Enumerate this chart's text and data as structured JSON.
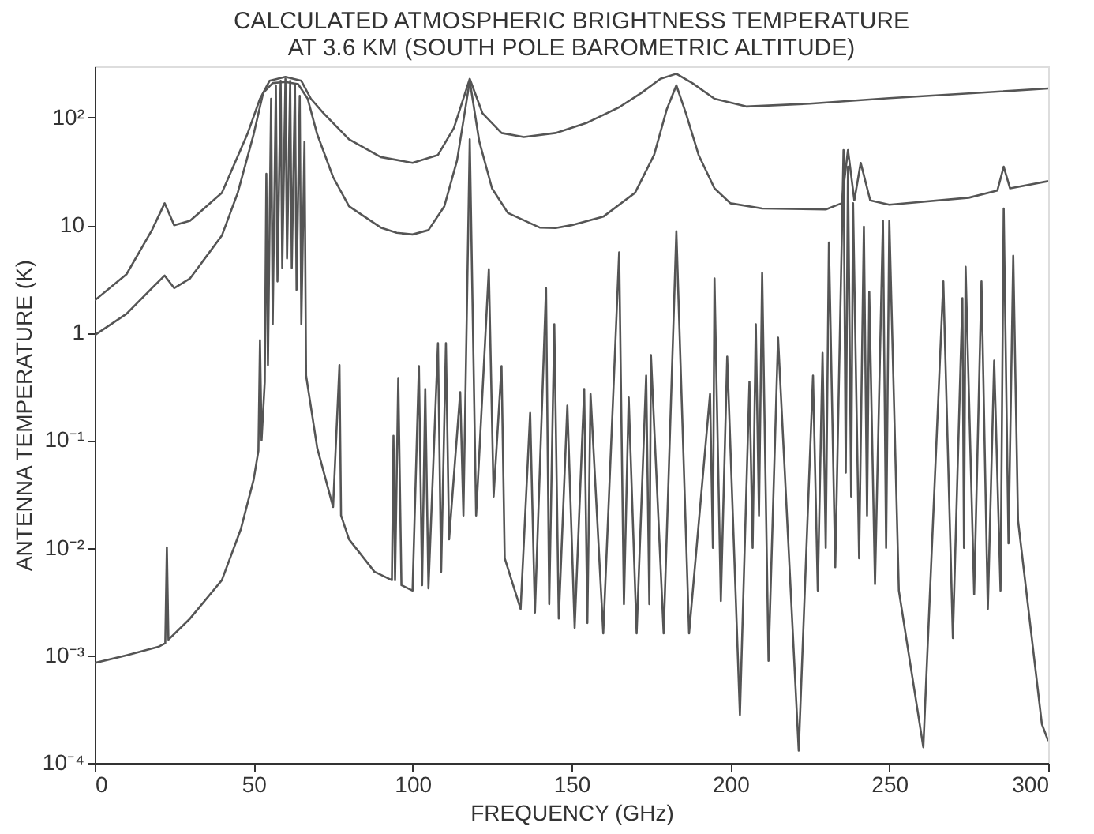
{
  "chart_data": {
    "type": "line",
    "title": "CALCULATED ATMOSPHERIC BRIGHTNESS TEMPERATURE\nAT 3.6 KM (SOUTH POLE BAROMETRIC ALTITUDE)",
    "xlabel": "FREQUENCY (GHz)",
    "ylabel": "ANTENNA TEMPERATURE (K)",
    "xlim": [
      0,
      300
    ],
    "xticks": [
      0,
      50,
      100,
      150,
      200,
      250,
      300
    ],
    "ylim": [
      0.0001,
      300
    ],
    "log": true,
    "grid": false,
    "yticks": [
      {
        "value": 0.0001,
        "label": "10⁻⁴"
      },
      {
        "value": 0.001,
        "label": "10⁻³"
      },
      {
        "value": 0.01,
        "label": "10⁻²"
      },
      {
        "value": 0.1,
        "label": "10⁻¹"
      },
      1,
      10,
      {
        "value": 100,
        "label": "10²"
      }
    ],
    "series": [
      {
        "type": "line",
        "color": "#555555",
        "x": [
          0,
          10,
          18,
          22,
          25,
          30,
          40,
          48,
          52,
          55,
          60,
          65,
          68,
          72,
          80,
          90,
          100,
          108,
          113,
          118,
          122,
          128,
          135,
          145,
          155,
          165,
          172,
          178,
          183,
          188,
          195,
          205,
          225,
          250,
          275,
          300
        ],
        "values": [
          2.0,
          3.5,
          9,
          16,
          10,
          11,
          20,
          70,
          150,
          220,
          240,
          220,
          150,
          110,
          63,
          43,
          38,
          45,
          80,
          230,
          110,
          72,
          66,
          72,
          90,
          125,
          170,
          230,
          256,
          210,
          150,
          127,
          135,
          152,
          168,
          187
        ]
      },
      {
        "type": "line",
        "color": "#555555",
        "x": [
          0,
          10,
          18,
          22,
          25,
          30,
          40,
          45,
          50,
          53,
          56,
          60,
          64,
          67,
          70,
          75,
          80,
          90,
          95,
          100,
          105,
          110,
          114,
          118,
          121,
          125,
          130,
          140,
          145,
          150,
          160,
          170,
          176,
          180,
          183,
          186,
          190,
          195,
          200,
          210,
          230,
          235,
          237,
          239,
          241,
          244,
          250,
          275,
          284,
          286,
          288,
          300
        ],
        "values": [
          0.95,
          1.5,
          2.6,
          3.4,
          2.6,
          3.2,
          8,
          20,
          70,
          170,
          210,
          215,
          205,
          150,
          70,
          28,
          15,
          9.5,
          8.5,
          8.2,
          9,
          15,
          40,
          220,
          60,
          22,
          13,
          9.5,
          9.4,
          10,
          12,
          20,
          45,
          120,
          200,
          110,
          45,
          22,
          16,
          14.3,
          14,
          16,
          50,
          17,
          38,
          17,
          15.5,
          18,
          21,
          35,
          22,
          25.7
        ]
      },
      {
        "type": "line",
        "color": "#555555",
        "x": [
          0,
          10,
          20,
          22.2,
          22.7,
          23.2,
          30,
          40,
          46,
          50,
          51.5,
          52,
          52.5,
          53.5,
          54,
          54.5,
          55.5,
          56,
          57,
          57.5,
          58.5,
          59,
          60,
          60.5,
          61.5,
          62,
          63,
          63.5,
          64.5,
          65,
          66,
          66.5,
          70,
          75,
          77,
          77.5,
          80,
          88,
          93.5,
          94,
          94.5,
          95.5,
          96.5,
          100,
          102,
          103,
          104,
          105,
          108,
          109,
          110.5,
          111.5,
          115,
          116,
          118,
          120,
          124,
          125.5,
          128,
          129,
          134,
          137,
          138.5,
          142,
          143,
          144.6,
          146,
          148.7,
          151,
          154,
          155,
          156,
          160,
          165,
          166.5,
          168,
          170.5,
          173.5,
          174.5,
          175,
          179,
          183,
          187,
          193.6,
          194.5,
          195,
          197,
          199,
          203,
          206,
          207,
          208,
          209,
          210,
          212,
          215,
          221.5,
          226,
          227.5,
          229,
          230,
          231,
          233,
          235.6,
          236.3,
          237,
          238,
          238.6,
          240.5,
          242,
          243,
          243.7,
          245.5,
          248,
          249,
          250,
          253,
          260.7,
          267,
          270,
          273,
          273.5,
          274,
          276.7,
          279,
          281,
          283,
          285,
          286,
          287.5,
          289,
          290.5,
          298,
          300
        ],
        "values": [
          0.00085,
          0.001,
          0.0012,
          0.0013,
          0.0101,
          0.0014,
          0.0022,
          0.005,
          0.015,
          0.043,
          0.08,
          0.85,
          0.1,
          0.35,
          30,
          0.5,
          150,
          1.2,
          200,
          3,
          220,
          4,
          230,
          4.9,
          220,
          4,
          200,
          2.5,
          160,
          1.2,
          60,
          0.4,
          0.085,
          0.024,
          0.5,
          0.02,
          0.012,
          0.006,
          0.005,
          0.11,
          0.005,
          0.38,
          0.0045,
          0.004,
          0.49,
          0.0045,
          0.3,
          0.0042,
          0.8,
          0.006,
          0.8,
          0.012,
          0.28,
          0.02,
          63,
          0.02,
          3.9,
          0.03,
          0.49,
          0.008,
          0.0027,
          0.18,
          0.0025,
          2.6,
          0.003,
          1.2,
          0.0022,
          0.21,
          0.0018,
          0.3,
          0.002,
          0.27,
          0.0016,
          5.6,
          0.003,
          0.25,
          0.0016,
          0.4,
          0.003,
          0.62,
          0.0016,
          8.8,
          0.0016,
          0.27,
          0.01,
          3.2,
          0.0032,
          0.6,
          0.00028,
          0.35,
          0.01,
          1.2,
          0.02,
          3.6,
          0.00089,
          0.9,
          0.00013,
          0.4,
          0.004,
          0.65,
          0.01,
          6.9,
          0.0066,
          50,
          0.05,
          35,
          0.03,
          16,
          0.008,
          9.7,
          0.02,
          2.4,
          0.0046,
          11,
          0.01,
          11,
          0.004,
          0.00014,
          3,
          0.00145,
          2.1,
          0.01,
          4.1,
          0.0037,
          3,
          0.0027,
          0.55,
          0.004,
          14.3,
          0.011,
          5.2,
          0.018,
          0.00023,
          0.00016
        ]
      }
    ]
  }
}
